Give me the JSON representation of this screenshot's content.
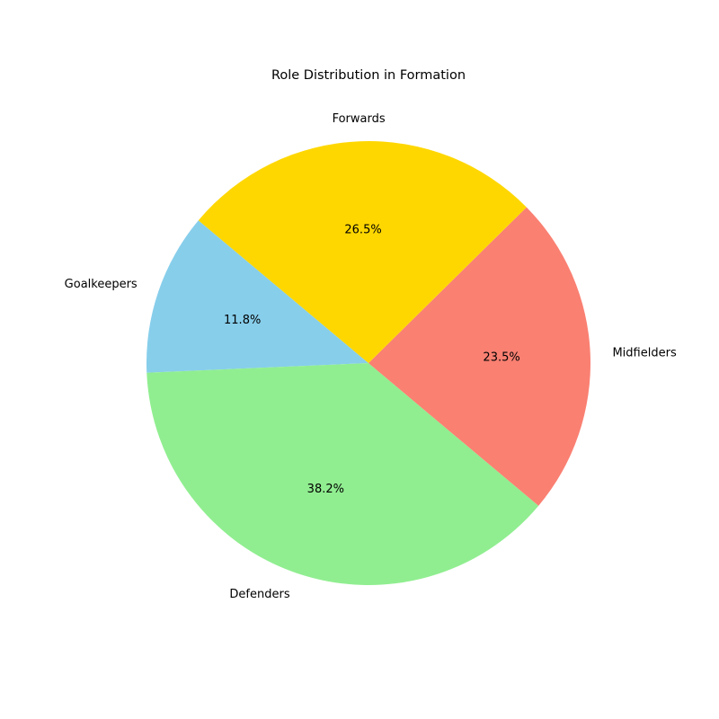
{
  "chart_data": {
    "type": "pie",
    "title": "Role Distribution in Formation",
    "start_angle_deg": 140,
    "direction": "counterclockwise",
    "slices": [
      {
        "label": "Goalkeepers",
        "value": 11.8,
        "pct_label": "11.8%",
        "color": "#87CEEB"
      },
      {
        "label": "Defenders",
        "value": 38.2,
        "pct_label": "38.2%",
        "color": "#90EE90"
      },
      {
        "label": "Midfielders",
        "value": 23.5,
        "pct_label": "23.5%",
        "color": "#FA8072"
      },
      {
        "label": "Forwards",
        "value": 26.5,
        "pct_label": "26.5%",
        "color": "#FFD700"
      }
    ]
  }
}
